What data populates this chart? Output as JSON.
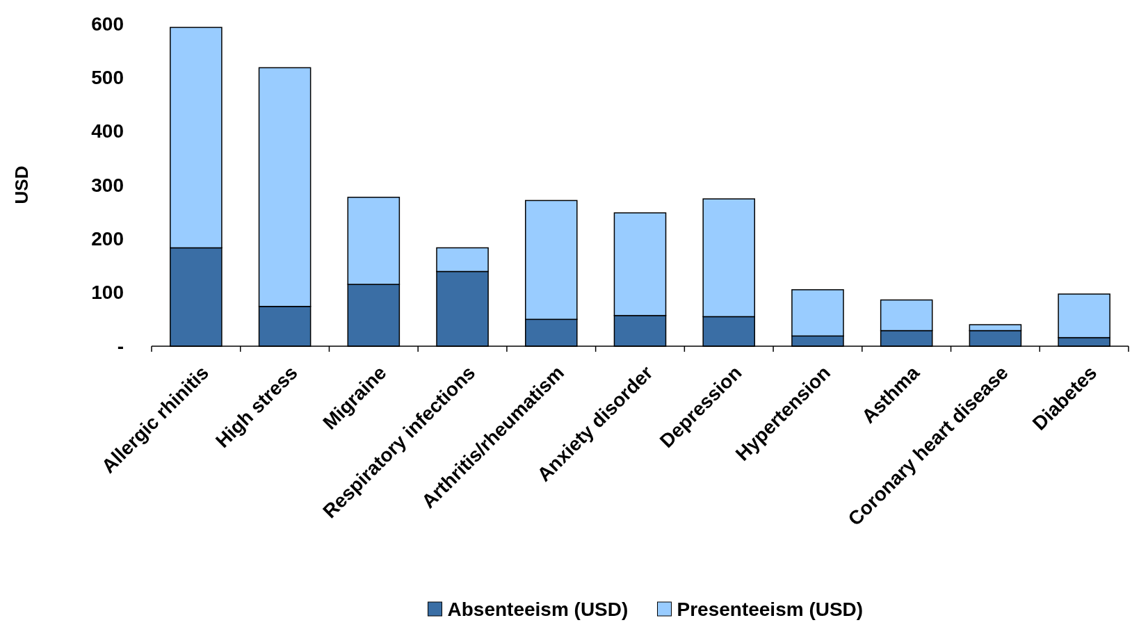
{
  "chart_data": {
    "type": "bar",
    "stacked": true,
    "ylabel": "USD",
    "categories": [
      "Allergic rhinitis",
      "High stress",
      "Migraine",
      "Respiratory infections",
      "Arthritis/rheumatism",
      "Anxiety disorder",
      "Depression",
      "Hypertension",
      "Asthma",
      "Coronary heart disease",
      "Diabetes"
    ],
    "series": [
      {
        "name": "Absenteeism (USD)",
        "color": "#3a6ea5",
        "values": [
          183,
          74,
          115,
          139,
          50,
          57,
          55,
          19,
          29,
          29,
          16
        ]
      },
      {
        "name": "Presenteeism (USD)",
        "color": "#99ccff",
        "values": [
          410,
          444,
          162,
          44,
          221,
          191,
          219,
          86,
          57,
          11,
          81
        ]
      }
    ],
    "ylim": [
      0,
      600
    ],
    "yticks": [
      {
        "value": 0,
        "label": "-"
      },
      100,
      200,
      300,
      400,
      500,
      600
    ],
    "grid": false,
    "legend": "bottom"
  }
}
